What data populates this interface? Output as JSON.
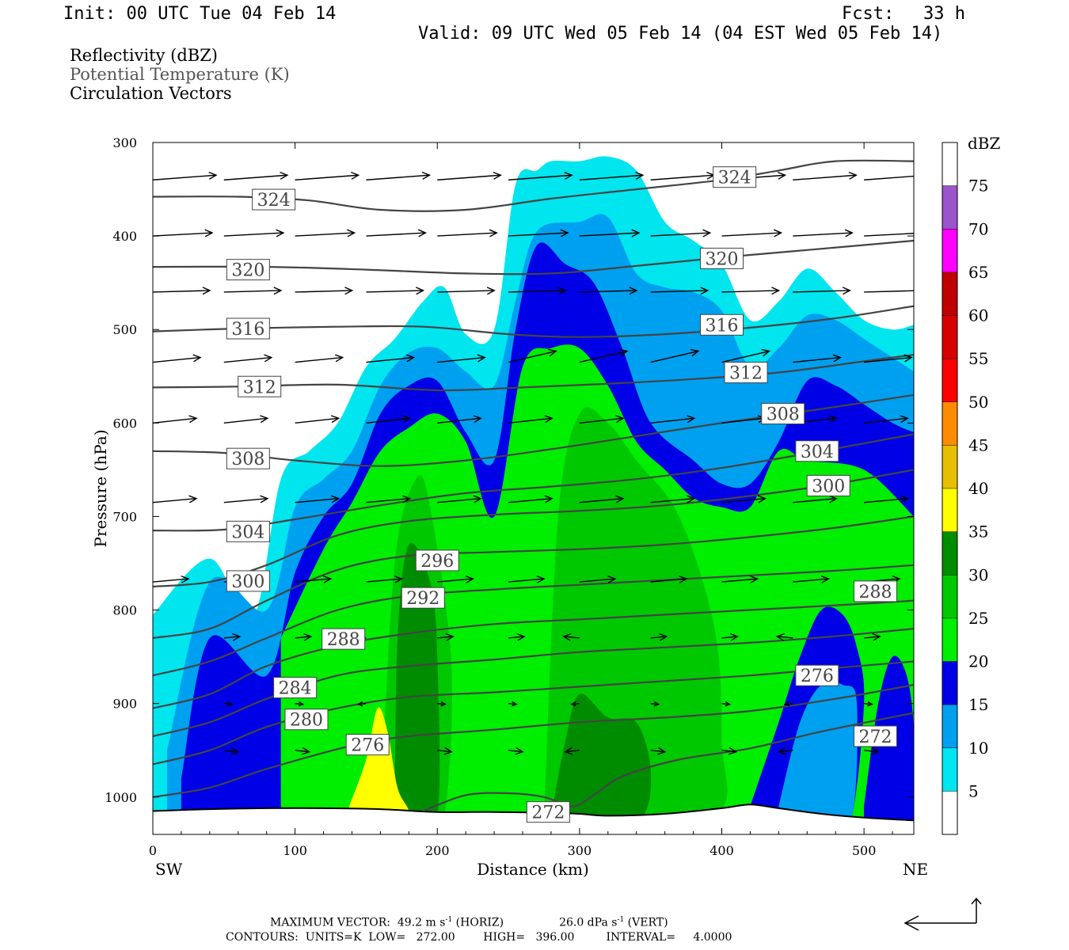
{
  "header": {
    "init": "Init: 00 UTC Tue 04 Feb 14",
    "fcst_label": "Fcst:",
    "fcst_value": "33 h",
    "valid": "Valid: 09 UTC Wed 05 Feb 14 (04 EST Wed 05 Feb 14)"
  },
  "fields": {
    "reflectivity": "Reflectivity (dBZ)",
    "theta": "Potential Temperature (K)",
    "vectors": "Circulation Vectors"
  },
  "footer": {
    "max_vector": "MAXIMUM VECTOR:  49.2 m s",
    "max_vector_exp": "-1",
    "max_vector_horiz": " (HORIZ)",
    "max_vector_vert": "26.0 dPa s",
    "max_vector_vert_exp": "-1",
    "max_vector_vert_tag": " (VERT)",
    "contours": "CONTOURS:  UNITS=K  LOW=   272.00        HIGH=   396.00         INTERVAL=     4.0000"
  },
  "colors": {
    "c5": "#00e5ee",
    "c10": "#00a0f0",
    "c15": "#0000e6",
    "c20": "#00ee00",
    "c25": "#00c800",
    "c30": "#008c00",
    "c35": "#ffff00",
    "c40": "#e6c000",
    "c45": "#ff8c00",
    "c50": "#ff0000",
    "c55": "#d60000",
    "c60": "#c00000",
    "c65": "#ff00ff",
    "c70": "#9955c9",
    "contour": "#444444"
  },
  "chart_data": {
    "type": "cross-section",
    "xlabel": "Distance (km)",
    "ylabel": "Pressure (hPa)",
    "xlim": [
      0,
      535
    ],
    "ylim": [
      1040,
      300
    ],
    "x_ticks": [
      0,
      100,
      200,
      300,
      400,
      500
    ],
    "y_ticks": [
      300,
      400,
      500,
      600,
      700,
      800,
      900,
      1000
    ],
    "left_end_label": "SW",
    "right_end_label": "NE",
    "colorbar": {
      "unit": "dBZ",
      "levels": [
        5,
        10,
        15,
        20,
        25,
        30,
        35,
        40,
        45,
        50,
        55,
        60,
        65,
        70,
        75
      ]
    },
    "theta_contours": [
      {
        "value": 324,
        "x": [
          0,
          60,
          110,
          160,
          220,
          280,
          340,
          400,
          440,
          480,
          535
        ],
        "p": [
          358,
          358,
          362,
          372,
          372,
          360,
          350,
          340,
          330,
          320,
          320
        ],
        "labels": [
          [
            85,
            361
          ],
          [
            409,
            337
          ]
        ]
      },
      {
        "value": 320,
        "x": [
          0,
          80,
          150,
          220,
          280,
          340,
          400,
          460,
          535
        ],
        "p": [
          433,
          433,
          436,
          440,
          440,
          432,
          423,
          415,
          405
        ],
        "labels": [
          [
            67,
            436
          ],
          [
            400,
            424
          ]
        ]
      },
      {
        "value": 316,
        "x": [
          0,
          60,
          130,
          190,
          250,
          300,
          360,
          420,
          480,
          535
        ],
        "p": [
          502,
          499,
          497,
          497,
          505,
          508,
          505,
          498,
          488,
          475
        ],
        "labels": [
          [
            67,
            499
          ],
          [
            400,
            495
          ]
        ]
      },
      {
        "value": 312,
        "x": [
          0,
          60,
          130,
          200,
          260,
          320,
          380,
          440,
          500,
          535
        ],
        "p": [
          562,
          561,
          559,
          565,
          562,
          558,
          553,
          546,
          534,
          527
        ],
        "labels": [
          [
            75,
            561
          ],
          [
            417,
            546
          ]
        ]
      },
      {
        "value": 308,
        "x": [
          0,
          50,
          100,
          160,
          220,
          280,
          340,
          400,
          470,
          535
        ],
        "p": [
          630,
          632,
          640,
          646,
          640,
          628,
          614,
          600,
          585,
          570
        ],
        "labels": [
          [
            67,
            638
          ],
          [
            443,
            590
          ]
        ]
      },
      {
        "value": 304,
        "x": [
          0,
          50,
          100,
          160,
          220,
          280,
          340,
          400,
          470,
          535
        ],
        "p": [
          715,
          714,
          703,
          688,
          675,
          668,
          660,
          648,
          630,
          612
        ],
        "labels": [
          [
            67,
            716
          ],
          [
            467,
            630
          ]
        ]
      },
      {
        "value": 300,
        "x": [
          0,
          40,
          80,
          130,
          180,
          240,
          300,
          360,
          420,
          480,
          535
        ],
        "p": [
          775,
          770,
          752,
          720,
          705,
          698,
          694,
          688,
          678,
          665,
          650
        ],
        "labels": [
          [
            67,
            769
          ],
          [
            475,
            667
          ]
        ]
      },
      {
        "value": 296,
        "x": [
          0,
          40,
          80,
          130,
          180,
          240,
          300,
          360,
          420,
          480,
          535
        ],
        "p": [
          830,
          820,
          790,
          757,
          742,
          738,
          735,
          730,
          722,
          712,
          700
        ],
        "labels": [
          [
            200,
            747
          ]
        ]
      },
      {
        "value": 292,
        "x": [
          0,
          40,
          80,
          130,
          180,
          240,
          300,
          360,
          420,
          480,
          535
        ],
        "p": [
          870,
          855,
          830,
          800,
          785,
          778,
          773,
          768,
          763,
          758,
          752
        ],
        "labels": [
          [
            190,
            787
          ]
        ]
      },
      {
        "value": 288,
        "x": [
          0,
          40,
          80,
          130,
          180,
          240,
          300,
          360,
          420,
          480,
          535
        ],
        "p": [
          905,
          890,
          860,
          838,
          825,
          815,
          810,
          805,
          800,
          795,
          790
        ],
        "labels": [
          [
            134,
            831
          ],
          [
            508,
            780
          ]
        ]
      },
      {
        "value": 284,
        "x": [
          0,
          40,
          80,
          130,
          180,
          240,
          300,
          360,
          420,
          480,
          535
        ],
        "p": [
          935,
          920,
          895,
          870,
          860,
          853,
          845,
          840,
          835,
          828,
          820
        ],
        "labels": [
          [
            100,
            883
          ]
        ]
      },
      {
        "value": 280,
        "x": [
          0,
          40,
          80,
          130,
          180,
          240,
          300,
          360,
          420,
          480,
          535
        ],
        "p": [
          965,
          950,
          925,
          905,
          893,
          888,
          882,
          876,
          870,
          862,
          855
        ],
        "labels": [
          [
            108,
            917
          ]
        ]
      },
      {
        "value": 276,
        "x": [
          0,
          40,
          80,
          140,
          180,
          240,
          300,
          360,
          420,
          480,
          535
        ],
        "p": [
          1000,
          990,
          970,
          945,
          935,
          928,
          920,
          915,
          908,
          895,
          880
        ],
        "labels": [
          [
            151,
            944
          ],
          [
            467,
            870
          ]
        ]
      },
      {
        "value": 272,
        "x": [
          190,
          220,
          250,
          275,
          295,
          310,
          330,
          370,
          420,
          470,
          535
        ],
        "p": [
          1015,
          998,
          996,
          1000,
          1010,
          998,
          978,
          960,
          948,
          930,
          910
        ],
        "labels": [
          [
            278,
            1016
          ],
          [
            508,
            935
          ]
        ]
      }
    ],
    "reflectivity_areas": [
      {
        "dbz": 5,
        "x": [
          0,
          40,
          70,
          90,
          110,
          130,
          150,
          170,
          190,
          205,
          220,
          240,
          255,
          270,
          280,
          300,
          320,
          340,
          360,
          380,
          400,
          420,
          440,
          460,
          480,
          500,
          520,
          535
        ],
        "top": [
          805,
          745,
          810,
          660,
          630,
          600,
          540,
          510,
          470,
          455,
          505,
          500,
          345,
          330,
          320,
          320,
          315,
          330,
          385,
          405,
          430,
          490,
          470,
          435,
          460,
          490,
          500,
          495
        ]
      },
      {
        "dbz": 10,
        "x": [
          10,
          40,
          80,
          100,
          120,
          140,
          160,
          180,
          200,
          220,
          240,
          255,
          270,
          300,
          320,
          340,
          360,
          380,
          400,
          420,
          440,
          460,
          480,
          500,
          520,
          535
        ],
        "top": [
          950,
          770,
          800,
          690,
          660,
          630,
          560,
          525,
          520,
          545,
          560,
          470,
          395,
          385,
          380,
          440,
          455,
          460,
          480,
          540,
          520,
          485,
          490,
          510,
          530,
          545
        ]
      },
      {
        "dbz": 15,
        "x": [
          20,
          40,
          80,
          100,
          120,
          140,
          160,
          180,
          200,
          220,
          240,
          255,
          270,
          290,
          310,
          330,
          350,
          380,
          400,
          420,
          440,
          460,
          480,
          500,
          520,
          535
        ],
        "top": [
          980,
          830,
          870,
          760,
          700,
          665,
          590,
          560,
          555,
          610,
          640,
          500,
          410,
          430,
          450,
          520,
          600,
          640,
          665,
          665,
          620,
          555,
          560,
          580,
          600,
          610
        ]
      },
      {
        "dbz": 20,
        "x": [
          90,
          120,
          140,
          160,
          180,
          200,
          220,
          240,
          260,
          280,
          300,
          320,
          340,
          360,
          380,
          400,
          420,
          440,
          460,
          500,
          535
        ],
        "top": [
          830,
          735,
          685,
          630,
          605,
          590,
          620,
          700,
          540,
          520,
          520,
          560,
          620,
          650,
          680,
          690,
          690,
          630,
          640,
          650,
          700
        ]
      }
    ]
  }
}
